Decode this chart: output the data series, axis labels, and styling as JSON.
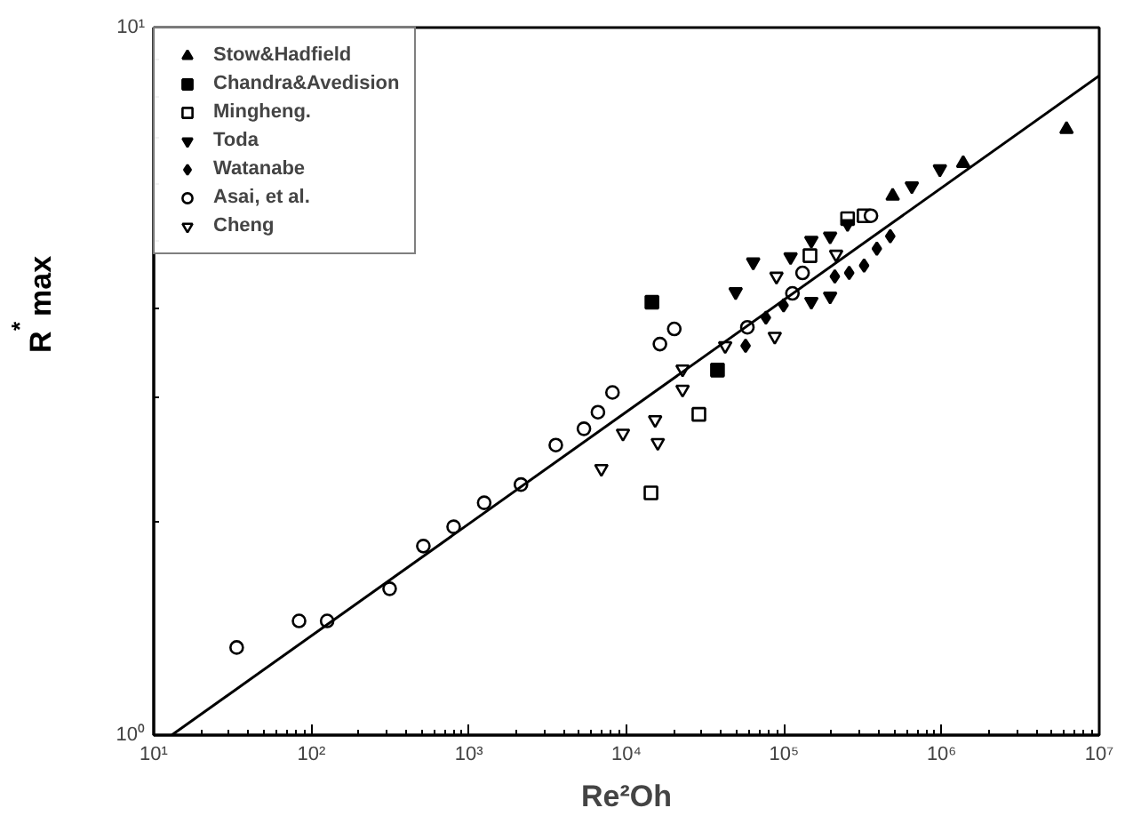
{
  "chart_data": {
    "type": "scatter",
    "xlabel": "Re²Oh",
    "ylabel": "R$^{*}$max",
    "log": "xy",
    "xlim": [
      10,
      10000000
    ],
    "ylim": [
      1,
      10
    ],
    "xticks": [
      {
        "value": 10,
        "label": "10¹"
      },
      {
        "value": 100,
        "label": "10²"
      },
      {
        "value": 1000,
        "label": "10³"
      },
      {
        "value": 10000,
        "label": "10⁴"
      },
      {
        "value": 100000,
        "label": "10⁵"
      },
      {
        "value": 1000000,
        "label": "10⁶"
      },
      {
        "value": 10000000,
        "label": "10⁷"
      }
    ],
    "yticks": [
      {
        "value": 1,
        "label": "10⁰"
      },
      {
        "value": 10,
        "label": "10¹"
      }
    ],
    "grid": false,
    "legend": "top left",
    "series": [
      {
        "name": "Stow&Hadfield",
        "color": "#000000",
        "x": [
          489000,
          1370000,
          6200000
        ],
        "values": [
          5.78,
          6.43,
          7.18
        ]
      },
      {
        "name": "Chandra&Avedision",
        "color": "#000000",
        "x": [
          14500,
          37800
        ],
        "values": [
          4.09,
          3.28
        ]
      },
      {
        "name": "Mingheng.",
        "color": "#000000",
        "x": [
          14300,
          28800,
          146000,
          253000,
          322000
        ],
        "values": [
          2.2,
          2.84,
          4.76,
          5.37,
          5.42
        ]
      },
      {
        "name": "Toda",
        "color": "#000000",
        "x": [
          49300,
          63700,
          110000,
          149000,
          196000,
          149000,
          196000,
          253000,
          647000,
          975000
        ],
        "values": [
          4.23,
          4.66,
          4.74,
          5.0,
          5.07,
          4.1,
          4.17,
          5.28,
          5.97,
          6.31
        ]
      },
      {
        "name": "Watanabe",
        "color": "#000000",
        "x": [
          57000,
          76700,
          99300,
          210000,
          259000,
          322000,
          388000,
          472000
        ],
        "values": [
          3.55,
          3.89,
          4.05,
          4.45,
          4.5,
          4.61,
          4.87,
          5.07
        ]
      },
      {
        "name": "Asai, et al.",
        "color": "#000000",
        "x": [
          33.6,
          83.6,
          126,
          314,
          514,
          800,
          1250,
          2140,
          3560,
          5370,
          6590,
          8150,
          16300,
          20100,
          58500,
          113000,
          131000,
          356000
        ],
        "values": [
          1.33,
          1.45,
          1.45,
          1.61,
          1.85,
          1.97,
          2.13,
          2.26,
          2.57,
          2.71,
          2.86,
          3.05,
          3.57,
          3.75,
          3.77,
          4.21,
          4.5,
          5.42
        ]
      },
      {
        "name": "Cheng",
        "color": "#000000",
        "x": [
          6930,
          9500,
          15200,
          15800,
          22700,
          22700,
          42300,
          87300,
          89500,
          214000
        ],
        "values": [
          2.38,
          2.67,
          2.79,
          2.59,
          3.29,
          3.08,
          3.55,
          3.66,
          4.45,
          4.78
        ]
      },
      {
        "type": "line",
        "color": "#000000",
        "marker": "none",
        "x": [
          13,
          10000000
        ],
        "values": [
          1.0,
          8.55
        ]
      }
    ]
  }
}
